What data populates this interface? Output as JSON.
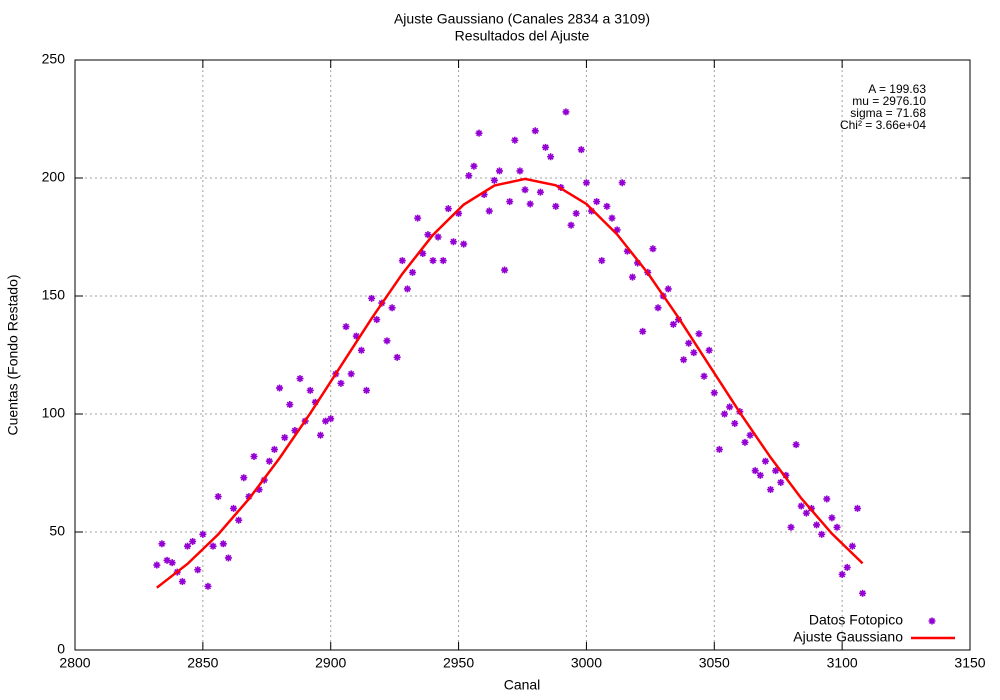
{
  "chart_data": {
    "type": "scatter",
    "title": "Ajuste Gaussiano (Canales 2834 a 3109)",
    "subtitle": "Resultados del Ajuste",
    "x_label": "Canal",
    "y_label": "Cuentas (Fondo Restado)",
    "annotations": [
      "A = 199.63",
      "mu = 2976.10",
      "sigma = 71.68",
      "Chi² = 3.66e+04"
    ],
    "xlim": [
      2800,
      3150
    ],
    "ylim": [
      0,
      250
    ],
    "xticks": [
      2800,
      2850,
      2900,
      2950,
      3000,
      3050,
      3100,
      3150
    ],
    "yticks": [
      0,
      50,
      100,
      150,
      200,
      250
    ],
    "grid": true,
    "legend": "bottom-right",
    "series": [
      {
        "name": "Datos Fotopico",
        "color": "#9400d3",
        "style": "points",
        "x": [
          2832,
          2834,
          2836,
          2838,
          2840,
          2842,
          2844,
          2846,
          2848,
          2850,
          2852,
          2854,
          2856,
          2858,
          2860,
          2862,
          2864,
          2866,
          2868,
          2870,
          2872,
          2874,
          2876,
          2878,
          2880,
          2882,
          2884,
          2886,
          2888,
          2890,
          2892,
          2894,
          2896,
          2898,
          2900,
          2902,
          2904,
          2906,
          2908,
          2910,
          2912,
          2914,
          2916,
          2918,
          2920,
          2922,
          2924,
          2926,
          2928,
          2930,
          2932,
          2934,
          2936,
          2938,
          2940,
          2942,
          2944,
          2946,
          2948,
          2950,
          2952,
          2954,
          2956,
          2958,
          2960,
          2962,
          2964,
          2966,
          2968,
          2970,
          2972,
          2974,
          2976,
          2978,
          2980,
          2982,
          2984,
          2986,
          2988,
          2990,
          2992,
          2994,
          2996,
          2998,
          3000,
          3002,
          3004,
          3006,
          3008,
          3010,
          3012,
          3014,
          3016,
          3018,
          3020,
          3022,
          3024,
          3026,
          3028,
          3030,
          3032,
          3034,
          3036,
          3038,
          3040,
          3042,
          3044,
          3046,
          3048,
          3050,
          3052,
          3054,
          3056,
          3058,
          3060,
          3062,
          3064,
          3066,
          3068,
          3070,
          3072,
          3074,
          3076,
          3078,
          3080,
          3082,
          3084,
          3086,
          3088,
          3090,
          3092,
          3094,
          3096,
          3098,
          3100,
          3102,
          3104,
          3106,
          3108
        ],
        "values": [
          36,
          45,
          38,
          37,
          33,
          29,
          44,
          46,
          34,
          49,
          27,
          44,
          65,
          45,
          39,
          60,
          55,
          73,
          65,
          82,
          68,
          72,
          80,
          85,
          111,
          90,
          104,
          93,
          115,
          97,
          110,
          105,
          91,
          97,
          98,
          117,
          113,
          137,
          117,
          133,
          127,
          110,
          149,
          140,
          147,
          131,
          145,
          124,
          165,
          153,
          160,
          183,
          168,
          176,
          165,
          175,
          165,
          187,
          173,
          185,
          172,
          201,
          205,
          219,
          193,
          186,
          199,
          203,
          161,
          190,
          216,
          203,
          195,
          189,
          220,
          194,
          213,
          209,
          188,
          196,
          228,
          180,
          185,
          212,
          198,
          186,
          190,
          165,
          188,
          183,
          178,
          198,
          169,
          158,
          164,
          135,
          160,
          170,
          145,
          150,
          153,
          138,
          140,
          123,
          130,
          126,
          134,
          116,
          127,
          109,
          85,
          100,
          103,
          96,
          101,
          88,
          91,
          76,
          74,
          80,
          68,
          76,
          71,
          74,
          52,
          87,
          61,
          58,
          60,
          53,
          49,
          64,
          56,
          52,
          32,
          35,
          44,
          60,
          24
        ]
      },
      {
        "name": "Ajuste Gaussiano",
        "color": "#ff0000",
        "style": "line",
        "x": [
          2832,
          2844,
          2856,
          2868,
          2880,
          2892,
          2904,
          2916,
          2928,
          2940,
          2952,
          2964,
          2976,
          2988,
          3000,
          3012,
          3024,
          3036,
          3048,
          3060,
          3072,
          3084,
          3096,
          3108
        ],
        "values": [
          26.4,
          36.5,
          49.0,
          64.0,
          81.3,
          100.3,
          120.4,
          140.5,
          159.4,
          175.9,
          188.7,
          196.8,
          199.6,
          196.9,
          189.0,
          176.1,
          159.7,
          140.8,
          120.7,
          100.6,
          81.6,
          64.3,
          49.3,
          36.7
        ]
      }
    ]
  }
}
